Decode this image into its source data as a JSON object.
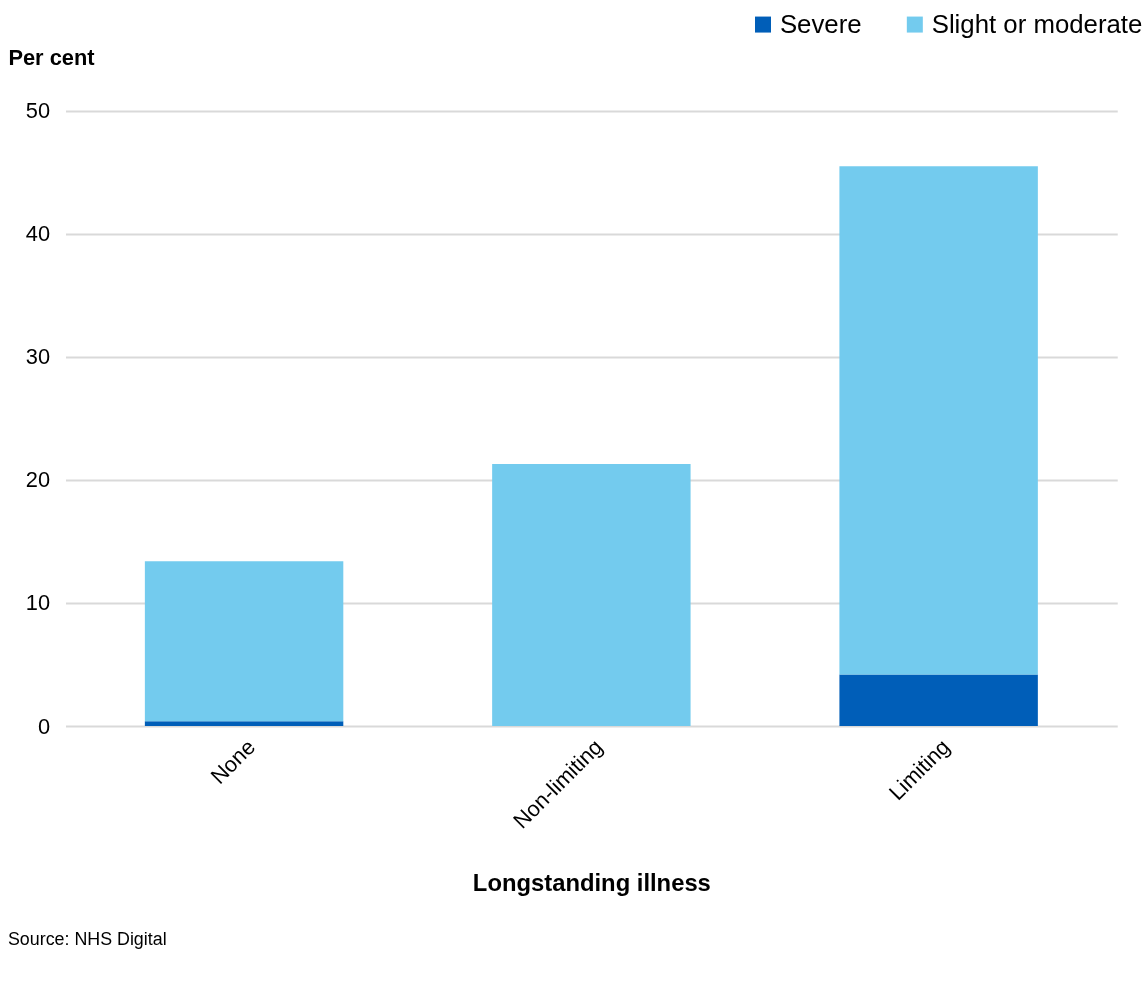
{
  "chart_data": {
    "type": "bar",
    "stacked": true,
    "categories": [
      "None",
      "Non-limiting",
      "Limiting"
    ],
    "series": [
      {
        "name": "Severe",
        "color": "#005eb8",
        "values": [
          0.4,
          0.0,
          4.2
        ]
      },
      {
        "name": "Slight or moderate",
        "color": "#73cbee",
        "values": [
          13.0,
          21.3,
          41.3
        ]
      }
    ],
    "ylabel": "Per cent",
    "xlabel": "Longstanding illness",
    "ylim": [
      0,
      50
    ],
    "yticks": [
      0,
      10,
      20,
      30,
      40,
      50
    ],
    "grid": "y",
    "legend": "top right",
    "annotations": [
      "Source: NHS Digital"
    ]
  }
}
